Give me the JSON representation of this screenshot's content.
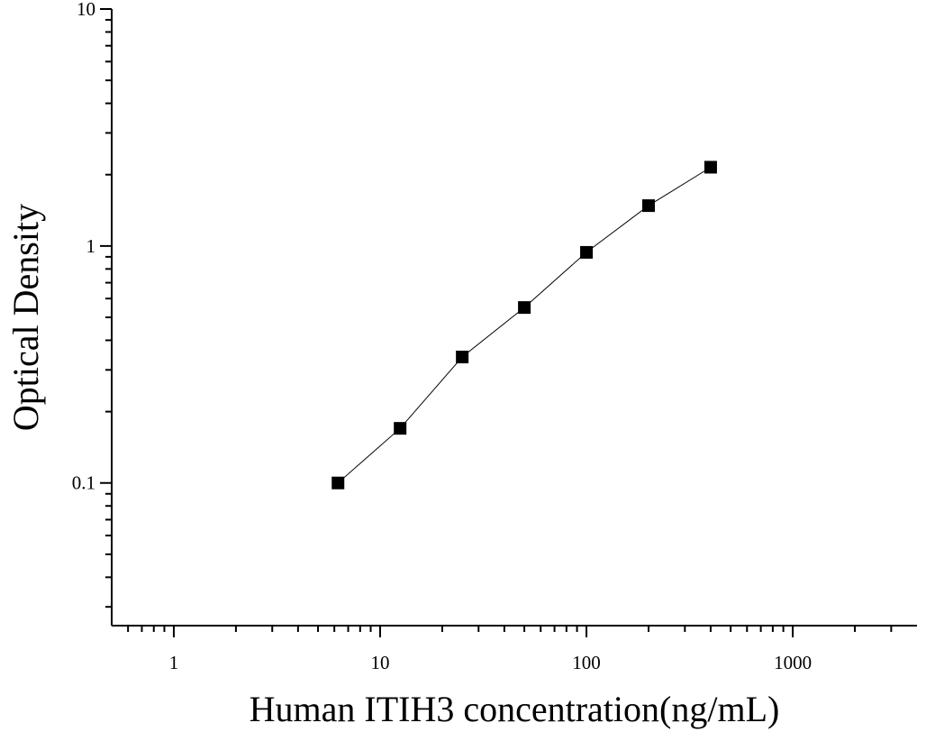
{
  "chart_data": {
    "type": "scatter-line",
    "x_label": "Human ITIH3 concentration(ng/mL)",
    "y_label": "Optical Density",
    "x": [
      6.25,
      12.5,
      25,
      50,
      100,
      200,
      400
    ],
    "values": [
      0.1,
      0.17,
      0.34,
      0.55,
      0.94,
      1.48,
      2.15
    ],
    "color": "#000000",
    "x_log": true,
    "y_log": true,
    "xlim": [
      0.5,
      4000
    ],
    "ylim": [
      0.025,
      10
    ],
    "xticks": [
      1,
      10,
      100,
      1000
    ],
    "yticks": [
      0.1,
      1,
      10
    ]
  }
}
